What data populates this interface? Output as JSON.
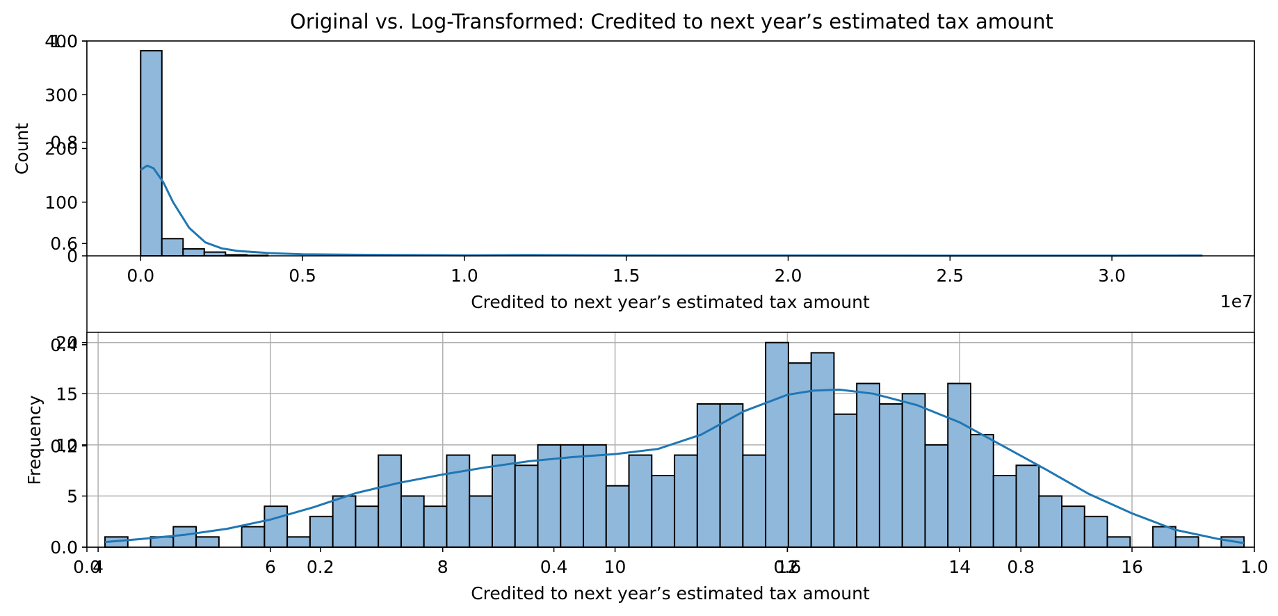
{
  "chart_data": [
    {
      "type": "bar",
      "title": "Original vs. Log-Transformed: Credited to next year’s estimated tax amount",
      "overlay_ticks": {
        "x": [
          "0.0",
          "0.2",
          "0.4",
          "0.6",
          "0.8",
          "1.0"
        ],
        "y": [
          "0.0",
          "0.2",
          "0.4",
          "0.6",
          "0.8",
          "1.0"
        ],
        "xlim": [
          0,
          1
        ],
        "ylim": [
          0,
          1
        ]
      }
    },
    {
      "type": "bar",
      "xlabel": "Credited to next year’s estimated tax amount",
      "ylabel": "Count",
      "offset_label": "1e7",
      "xlim": [
        -0.166,
        3.44
      ],
      "ylim": [
        0,
        400
      ],
      "xticks": [
        0.0,
        0.5,
        1.0,
        1.5,
        2.0,
        2.5,
        3.0
      ],
      "xtick_labels": [
        "0.0",
        "0.5",
        "1.0",
        "1.5",
        "2.0",
        "2.5",
        "3.0"
      ],
      "yticks": [
        0,
        100,
        200,
        300,
        400
      ],
      "ytick_labels": [
        "0",
        "100",
        "200",
        "300",
        "400"
      ],
      "bin_start": 0.0,
      "bin_width": 0.0655,
      "counts": [
        382,
        32,
        13,
        7,
        2,
        1,
        0,
        0,
        0,
        0,
        0,
        0,
        0,
        0,
        0,
        0,
        0,
        0,
        0,
        0,
        0,
        0,
        0,
        0,
        0,
        0,
        0,
        0,
        0,
        0,
        0,
        0,
        0,
        0,
        0,
        0,
        0,
        0,
        0,
        0,
        0,
        0,
        0,
        0,
        0,
        0,
        0,
        0,
        0,
        1
      ],
      "kde": {
        "x": [
          0.0,
          0.02,
          0.04,
          0.07,
          0.1,
          0.15,
          0.2,
          0.25,
          0.3,
          0.4,
          0.5,
          0.7,
          1.0,
          1.2,
          1.5,
          2.0,
          2.5,
          3.0,
          3.28
        ],
        "y": [
          160,
          168,
          163,
          137,
          100,
          52,
          25,
          14,
          9,
          5,
          3,
          2,
          1,
          1.5,
          0.8,
          0.6,
          0.3,
          0.4,
          0.5
        ]
      },
      "grid": false
    },
    {
      "type": "bar",
      "xlabel": "Credited to next year’s estimated tax amount",
      "ylabel": "Frequency",
      "xlim": [
        3.87,
        17.42
      ],
      "ylim": [
        0,
        21
      ],
      "xticks": [
        4,
        6,
        8,
        10,
        12,
        14,
        16
      ],
      "xtick_labels": [
        "4",
        "6",
        "8",
        "10",
        "12",
        "14",
        "16"
      ],
      "yticks": [
        0,
        5,
        10,
        15,
        20
      ],
      "ytick_labels": [
        "0",
        "5",
        "10",
        "15",
        "20"
      ],
      "bin_start": 4.08,
      "bin_width": 0.2644,
      "counts": [
        1,
        0,
        1,
        2,
        1,
        0,
        2,
        4,
        1,
        3,
        5,
        4,
        9,
        5,
        4,
        9,
        5,
        9,
        8,
        10,
        10,
        10,
        6,
        9,
        7,
        9,
        14,
        14,
        9,
        20,
        18,
        19,
        13,
        16,
        14,
        15,
        10,
        16,
        11,
        7,
        8,
        5,
        4,
        3,
        1,
        0,
        2,
        1,
        0,
        1
      ],
      "kde": {
        "x": [
          4.08,
          4.5,
          5,
          5.5,
          6,
          6.5,
          7,
          7.5,
          8,
          8.5,
          9,
          9.5,
          10,
          10.5,
          11,
          11.5,
          12,
          12.3,
          12.6,
          13,
          13.5,
          14,
          14.5,
          15,
          15.5,
          16,
          16.5,
          17,
          17.3
        ],
        "y": [
          0.5,
          0.8,
          1.2,
          1.8,
          2.7,
          3.9,
          5.3,
          6.3,
          7.1,
          7.8,
          8.4,
          8.8,
          9.1,
          9.6,
          11,
          13.3,
          14.9,
          15.3,
          15.4,
          15.0,
          13.9,
          12.2,
          9.9,
          7.6,
          5.2,
          3.3,
          1.7,
          0.8,
          0.4
        ]
      },
      "grid": true
    }
  ],
  "colors": {
    "bar_fill": "#8fb8db",
    "bar_edge": "#000000",
    "kde_line": "#1f77b4",
    "grid": "#b0b0b0"
  }
}
